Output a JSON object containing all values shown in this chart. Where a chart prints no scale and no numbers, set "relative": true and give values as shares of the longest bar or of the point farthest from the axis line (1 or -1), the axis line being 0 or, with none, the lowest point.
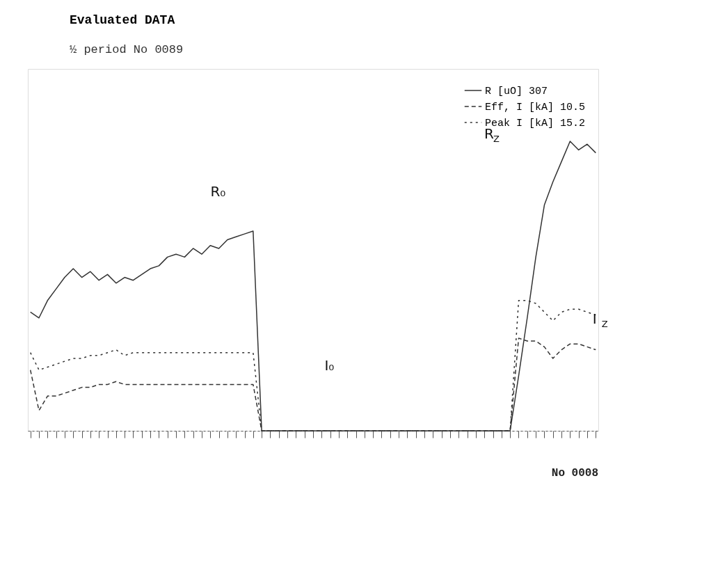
{
  "chart_data": {
    "type": "line",
    "relative": true,
    "title": "Evaluated DATA",
    "subtitle": "½ period No 0089",
    "categories": [
      null,
      null,
      null,
      null,
      null,
      null,
      null,
      null,
      null,
      null,
      null,
      null,
      null,
      null,
      null,
      null,
      null,
      null,
      null,
      null,
      null,
      null,
      null,
      null,
      null,
      null,
      null,
      null,
      null,
      null,
      null,
      null,
      null,
      null,
      null,
      null,
      null,
      null,
      null,
      null,
      null,
      null,
      null,
      null,
      null,
      null,
      null,
      null,
      null,
      null,
      null,
      null,
      null,
      null,
      null,
      null,
      null,
      null,
      null,
      null,
      null,
      null,
      null,
      null,
      null,
      null,
      null
    ],
    "series": [
      {
        "name": "R [uO] 307",
        "color": "#333333",
        "line_style": "solid",
        "values": [
          0.41,
          0.39,
          0.45,
          0.49,
          0.53,
          0.56,
          0.53,
          0.55,
          0.52,
          0.54,
          0.51,
          0.53,
          0.52,
          0.54,
          0.56,
          0.57,
          0.6,
          0.61,
          0.6,
          0.63,
          0.61,
          0.64,
          0.63,
          0.66,
          0.67,
          0.68,
          0.69,
          0,
          0,
          0,
          0,
          0,
          0,
          0,
          0,
          0,
          0,
          0,
          0,
          0,
          0,
          0,
          0,
          0,
          0,
          0,
          0,
          0,
          0,
          0,
          0,
          0,
          0,
          0,
          0,
          0,
          0,
          0.19,
          0.39,
          0.6,
          0.78,
          0.86,
          0.93,
          1.0,
          0.97,
          0.99,
          0.96
        ]
      },
      {
        "name": "Eff, I [kA] 10.5",
        "color": "#333333",
        "line_style": "dashed",
        "values": [
          0.21,
          0.07,
          0.12,
          0.12,
          0.13,
          0.14,
          0.15,
          0.15,
          0.16,
          0.16,
          0.17,
          0.16,
          0.16,
          0.16,
          0.16,
          0.16,
          0.16,
          0.16,
          0.16,
          0.16,
          0.16,
          0.16,
          0.16,
          0.16,
          0.16,
          0.16,
          0.16,
          0,
          0,
          0,
          0,
          0,
          0,
          0,
          0,
          0,
          0,
          0,
          0,
          0,
          0,
          0,
          0,
          0,
          0,
          0,
          0,
          0,
          0,
          0,
          0,
          0,
          0,
          0,
          0,
          0,
          0,
          0.32,
          0.31,
          0.31,
          0.29,
          0.25,
          0.28,
          0.3,
          0.3,
          0.29,
          0.28
        ]
      },
      {
        "name": "Peak I [kA] 15.2",
        "color": "#333333",
        "line_style": "dotted",
        "values": [
          0.27,
          0.21,
          0.22,
          0.23,
          0.24,
          0.25,
          0.25,
          0.26,
          0.26,
          0.27,
          0.28,
          0.26,
          0.27,
          0.27,
          0.27,
          0.27,
          0.27,
          0.27,
          0.27,
          0.27,
          0.27,
          0.27,
          0.27,
          0.27,
          0.27,
          0.27,
          0.27,
          0,
          0,
          0,
          0,
          0,
          0,
          0,
          0,
          0,
          0,
          0,
          0,
          0,
          0,
          0,
          0,
          0,
          0,
          0,
          0,
          0,
          0,
          0,
          0,
          0,
          0,
          0,
          0,
          0,
          0,
          0.45,
          0.45,
          0.44,
          0.41,
          0.38,
          0.41,
          0.42,
          0.42,
          0.41,
          0.4
        ]
      }
    ],
    "legend": "top right",
    "grid": false,
    "marker": "none",
    "annotations": [
      "R₀",
      "I₀",
      "R$_{Z}$",
      "I$_{Z}$",
      "No 0008"
    ]
  }
}
